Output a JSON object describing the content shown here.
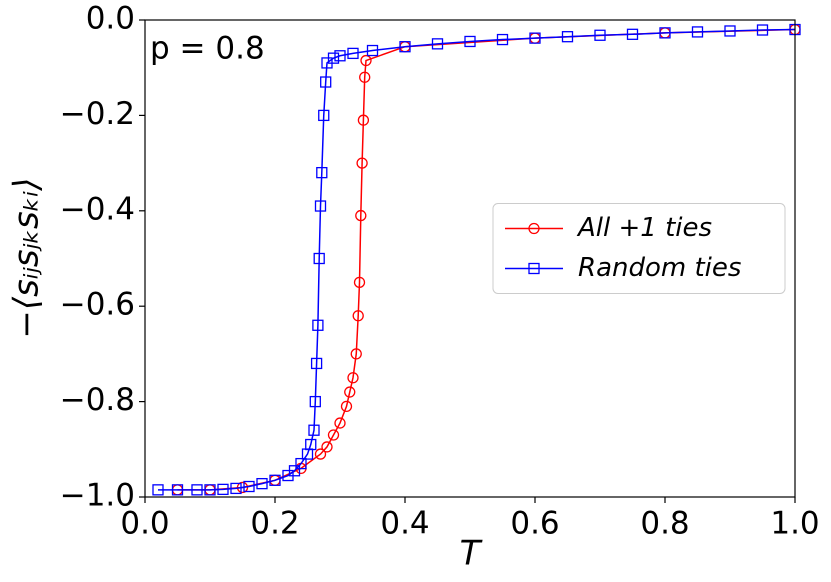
{
  "chart_data": {
    "type": "line",
    "xlabel": "T",
    "ylabel": "−⟨sᵢⱼsⱼₖsₖᵢ⟩",
    "annotation": "p =  0.8",
    "xlim": [
      0,
      1
    ],
    "ylim": [
      -1,
      0
    ],
    "xticks": [
      {
        "value": 0,
        "label": "0.0"
      },
      {
        "value": 0.2,
        "label": "0.2"
      },
      {
        "value": 0.4,
        "label": "0.4"
      },
      {
        "value": 0.6,
        "label": "0.6"
      },
      {
        "value": 0.8,
        "label": "0.8"
      },
      {
        "value": 1,
        "label": "1.0"
      }
    ],
    "yticks": [
      {
        "value": -1,
        "label": "−1.0"
      },
      {
        "value": -0.8,
        "label": "−0.8"
      },
      {
        "value": -0.6,
        "label": "−0.6"
      },
      {
        "value": -0.4,
        "label": "−0.4"
      },
      {
        "value": -0.2,
        "label": "−0.2"
      },
      {
        "value": 0,
        "label": "0.0"
      }
    ],
    "legend": "center right",
    "series": [
      {
        "name": "All +1 ties",
        "color": "#ff0000",
        "marker": "circle",
        "x": [
          0.05,
          0.1,
          0.15,
          0.2,
          0.24,
          0.27,
          0.28,
          0.29,
          0.3,
          0.31,
          0.315,
          0.32,
          0.325,
          0.328,
          0.33,
          0.332,
          0.334,
          0.336,
          0.338,
          0.34,
          0.4,
          0.6,
          0.8,
          1.0
        ],
        "values": [
          -0.985,
          -0.985,
          -0.98,
          -0.965,
          -0.94,
          -0.91,
          -0.895,
          -0.87,
          -0.845,
          -0.81,
          -0.78,
          -0.75,
          -0.7,
          -0.62,
          -0.55,
          -0.41,
          -0.3,
          -0.21,
          -0.12,
          -0.085,
          -0.056,
          -0.038,
          -0.027,
          -0.02
        ]
      },
      {
        "name": "Random ties",
        "color": "#0000ff",
        "marker": "square",
        "x": [
          0.02,
          0.05,
          0.08,
          0.1,
          0.12,
          0.14,
          0.16,
          0.18,
          0.2,
          0.22,
          0.23,
          0.24,
          0.25,
          0.255,
          0.26,
          0.262,
          0.264,
          0.266,
          0.268,
          0.27,
          0.272,
          0.275,
          0.278,
          0.28,
          0.29,
          0.3,
          0.32,
          0.35,
          0.4,
          0.45,
          0.5,
          0.55,
          0.6,
          0.65,
          0.7,
          0.75,
          0.8,
          0.85,
          0.9,
          0.95,
          1.0
        ],
        "values": [
          -0.985,
          -0.985,
          -0.985,
          -0.985,
          -0.984,
          -0.982,
          -0.978,
          -0.972,
          -0.965,
          -0.955,
          -0.945,
          -0.93,
          -0.91,
          -0.89,
          -0.86,
          -0.8,
          -0.72,
          -0.64,
          -0.5,
          -0.39,
          -0.32,
          -0.2,
          -0.13,
          -0.09,
          -0.08,
          -0.075,
          -0.07,
          -0.064,
          -0.056,
          -0.05,
          -0.045,
          -0.041,
          -0.038,
          -0.035,
          -0.032,
          -0.03,
          -0.027,
          -0.025,
          -0.023,
          -0.021,
          -0.02
        ]
      }
    ]
  }
}
